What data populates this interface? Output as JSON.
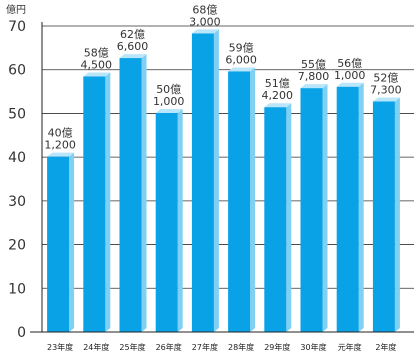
{
  "chart_data": {
    "type": "bar",
    "ylabel": "億円",
    "ylim": [
      0,
      70
    ],
    "ytick_step": 10,
    "yticks": [
      "0",
      "10",
      "20",
      "30",
      "40",
      "50",
      "60",
      "70"
    ],
    "categories": [
      "23年度",
      "24年度",
      "25年度",
      "26年度",
      "27年度",
      "28年度",
      "29年度",
      "30年度",
      "元年度",
      "2年度"
    ],
    "values": [
      40.12,
      58.45,
      62.66,
      50.1,
      68.3,
      59.6,
      51.42,
      55.78,
      56.1,
      52.73
    ],
    "data_labels": [
      [
        "40億",
        "1,200"
      ],
      [
        "58億",
        "4,500"
      ],
      [
        "62億",
        "6,600"
      ],
      [
        "50億",
        "1,000"
      ],
      [
        "68億",
        "3,000"
      ],
      [
        "59億",
        "6,000"
      ],
      [
        "51億",
        "4,200"
      ],
      [
        "55億",
        "7,800"
      ],
      [
        "56億",
        "1,000"
      ],
      [
        "52億",
        "7,300"
      ]
    ],
    "grid": true,
    "colors": {
      "bar_front": "#0aa2e6",
      "bar_side": "#7fd0f3",
      "bar_top": "#b9e6fa",
      "axis": "#222222",
      "grid": "#333333"
    }
  }
}
